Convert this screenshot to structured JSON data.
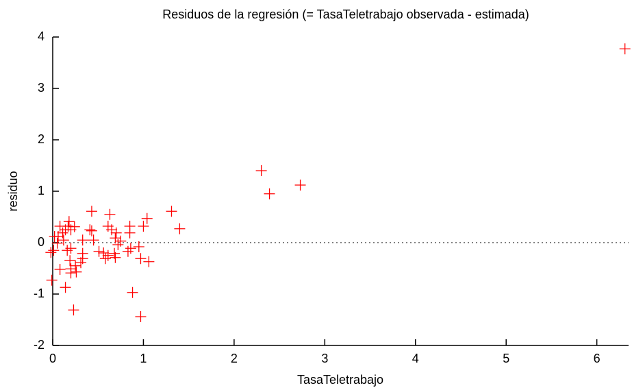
{
  "chart_data": {
    "type": "scatter",
    "title": "Residuos de la regresión (= TasaTeletrabajo observada - estimada)",
    "xlabel": "TasaTeletrabajo",
    "ylabel": "residuo",
    "color": "#ff0000",
    "xlim": [
      0,
      6.35
    ],
    "ylim": [
      -2,
      4
    ],
    "xticks": [
      0,
      1,
      2,
      3,
      4,
      5,
      6
    ],
    "yticks": [
      -2,
      -1,
      0,
      1,
      2,
      3,
      4
    ],
    "zero_line": true,
    "x": [
      6.31,
      2.3,
      2.39,
      2.73,
      1.31,
      1.4,
      1.04,
      1.0,
      1.06,
      0.97,
      0.95,
      0.97,
      0.88,
      0.85,
      0.85,
      0.83,
      0.86,
      0.63,
      0.61,
      0.65,
      0.69,
      0.7,
      0.72,
      0.75,
      0.68,
      0.69,
      0.61,
      0.56,
      0.58,
      0.51,
      0.43,
      0.41,
      0.43,
      0.45,
      0.33,
      0.33,
      0.33,
      0.31,
      0.24,
      0.2,
      0.18,
      0.17,
      0.2,
      0.16,
      0.19,
      0.2,
      0.2,
      0.25,
      0.26,
      0.23,
      0.14,
      0.08,
      0.08,
      0.11,
      0.06,
      0.05,
      0.02,
      0.01,
      -0.02,
      -0.01,
      0.12,
      0.14
    ],
    "values": [
      3.77,
      1.4,
      0.95,
      1.12,
      0.61,
      0.27,
      0.47,
      0.32,
      -0.37,
      -0.31,
      -0.08,
      -1.44,
      -0.97,
      0.32,
      0.19,
      -0.17,
      -0.11,
      0.55,
      0.32,
      0.25,
      0.09,
      0.19,
      -0.04,
      0.03,
      -0.21,
      -0.29,
      -0.25,
      -0.2,
      -0.31,
      -0.17,
      0.61,
      0.25,
      0.23,
      0.05,
      0.05,
      -0.21,
      -0.31,
      -0.39,
      0.31,
      0.25,
      0.41,
      0.32,
      -0.11,
      -0.15,
      -0.35,
      -0.51,
      -0.59,
      -0.45,
      -0.57,
      -1.31,
      -0.87,
      -0.52,
      0.32,
      0.19,
      0.12,
      -0.01,
      0.12,
      -0.15,
      -0.19,
      -0.73,
      0.05,
      0.25
    ]
  }
}
